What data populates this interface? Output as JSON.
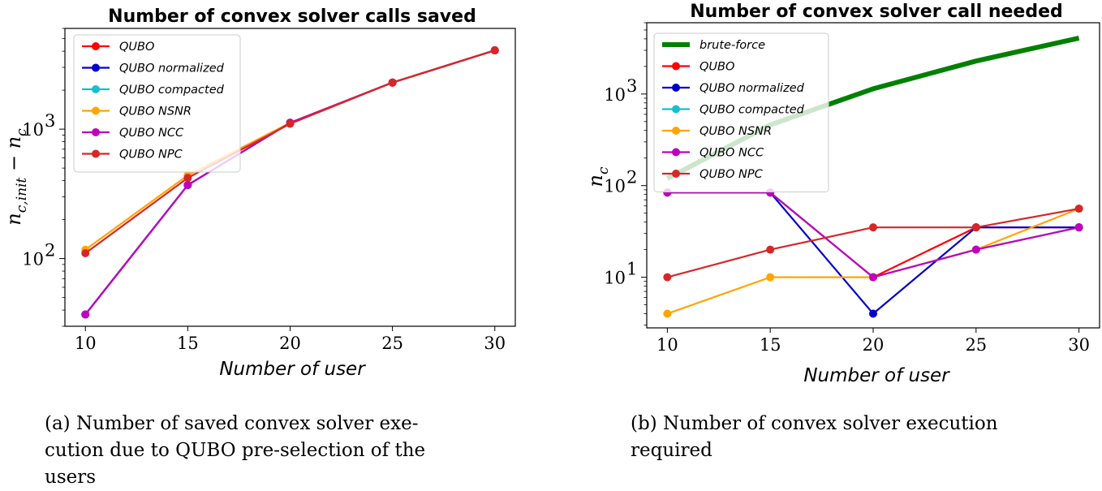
{
  "chart_data": [
    {
      "type": "line",
      "title": "Number of convex solver calls saved",
      "xlabel": "Number of user",
      "ylabel": "n_{c,init} − n_c",
      "x": [
        10,
        15,
        20,
        25,
        30
      ],
      "xticks": [
        "10",
        "15",
        "20",
        "25",
        "30"
      ],
      "yscale": "log",
      "ylim": [
        30,
        6000
      ],
      "yticks": [
        {
          "value": 100,
          "base": "10",
          "exp": "2"
        },
        {
          "value": 1000,
          "base": "10",
          "exp": "3"
        }
      ],
      "legend": "top-left",
      "series": [
        {
          "name": "QUBO",
          "color": "#ff0000",
          "values": [
            37,
            370,
            1120,
            2290,
            4060
          ]
        },
        {
          "name": "QUBO normalized",
          "color": "#0000cc",
          "values": [
            37,
            370,
            1120,
            2290,
            4060
          ]
        },
        {
          "name": "QUBO compacted",
          "color": "#17becf",
          "values": [
            37,
            370,
            1120,
            2290,
            4060
          ]
        },
        {
          "name": "QUBO NSNR",
          "color": "#ffa500",
          "values": [
            117,
            440,
            1120,
            2290,
            4060
          ]
        },
        {
          "name": "QUBO NCC",
          "color": "#bf00bf",
          "values": [
            37,
            370,
            1120,
            2290,
            4060
          ]
        },
        {
          "name": "QUBO NPC",
          "color": "#d62728",
          "values": [
            110,
            420,
            1100,
            2290,
            4060
          ]
        }
      ]
    },
    {
      "type": "line",
      "title": "Number of convex solver call needed",
      "xlabel": "Number of user",
      "ylabel": "n_c",
      "x": [
        10,
        15,
        20,
        25,
        30
      ],
      "xticks": [
        "10",
        "15",
        "20",
        "25",
        "30"
      ],
      "yscale": "log",
      "ylim": [
        2.8,
        6000
      ],
      "yticks": [
        {
          "value": 10,
          "base": "10",
          "exp": "1"
        },
        {
          "value": 100,
          "base": "10",
          "exp": "2"
        },
        {
          "value": 1000,
          "base": "10",
          "exp": "3"
        }
      ],
      "legend": "top-left",
      "series": [
        {
          "name": "brute-force",
          "color": "#008000",
          "values": [
            120,
            460,
            1140,
            2290,
            4080
          ],
          "marker": false,
          "width": 6
        },
        {
          "name": "QUBO",
          "color": "#ff0000",
          "values": [
            84,
            84,
            10,
            35,
            35
          ]
        },
        {
          "name": "QUBO normalized",
          "color": "#0000cc",
          "values": [
            84,
            84,
            4,
            35,
            35
          ]
        },
        {
          "name": "QUBO compacted",
          "color": "#17becf",
          "values": [
            84,
            84,
            10,
            20,
            35
          ]
        },
        {
          "name": "QUBO NSNR",
          "color": "#ffa500",
          "values": [
            4,
            10,
            10,
            20,
            56
          ]
        },
        {
          "name": "QUBO NCC",
          "color": "#bf00bf",
          "values": [
            84,
            84,
            10,
            20,
            35
          ]
        },
        {
          "name": "QUBO NPC",
          "color": "#d62728",
          "values": [
            10,
            20,
            35,
            35,
            56
          ]
        }
      ]
    }
  ],
  "captions": {
    "a": [
      "(a) Number of saved convex solver exe-",
      "cution due to QUBO pre-selection of the",
      "users"
    ],
    "b": [
      "(b) Number of convex solver execution",
      "required"
    ]
  }
}
